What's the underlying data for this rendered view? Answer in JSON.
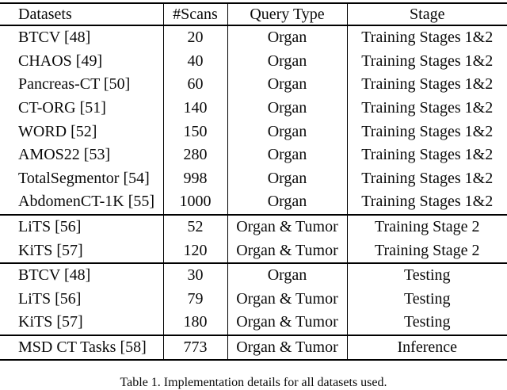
{
  "page": {
    "background": "#ffffff",
    "text_color": "#0a0a0a",
    "rule_color": "#000000"
  },
  "table": {
    "columns": [
      {
        "key": "datasets",
        "label": "Datasets",
        "align": "left"
      },
      {
        "key": "scans",
        "label": "#Scans",
        "align": "center"
      },
      {
        "key": "query-type",
        "label": "Query Type",
        "align": "center"
      },
      {
        "key": "stage",
        "label": "Stage",
        "align": "center"
      }
    ],
    "sections": [
      {
        "name": "training-stages-1-and-2",
        "rows": [
          [
            "BTCV [48]",
            "20",
            "Organ",
            "Training Stages 1&2"
          ],
          [
            "CHAOS [49]",
            "40",
            "Organ",
            "Training Stages 1&2"
          ],
          [
            "Pancreas-CT [50]",
            "60",
            "Organ",
            "Training Stages 1&2"
          ],
          [
            "CT-ORG [51]",
            "140",
            "Organ",
            "Training Stages 1&2"
          ],
          [
            "WORD [52]",
            "150",
            "Organ",
            "Training Stages 1&2"
          ],
          [
            "AMOS22 [53]",
            "280",
            "Organ",
            "Training Stages 1&2"
          ],
          [
            "TotalSegmentor [54]",
            "998",
            "Organ",
            "Training Stages 1&2"
          ],
          [
            "AbdomenCT-1K [55]",
            "1000",
            "Organ",
            "Training Stages 1&2"
          ]
        ]
      },
      {
        "name": "training-stage-2",
        "rows": [
          [
            "LiTS [56]",
            "52",
            "Organ & Tumor",
            "Training Stage 2"
          ],
          [
            "KiTS [57]",
            "120",
            "Organ & Tumor",
            "Training Stage 2"
          ]
        ]
      },
      {
        "name": "testing",
        "rows": [
          [
            "BTCV [48]",
            "30",
            "Organ",
            "Testing"
          ],
          [
            "LiTS [56]",
            "79",
            "Organ & Tumor",
            "Testing"
          ],
          [
            "KiTS [57]",
            "180",
            "Organ & Tumor",
            "Testing"
          ]
        ]
      },
      {
        "name": "inference",
        "rows": [
          [
            "MSD CT Tasks [58]",
            "773",
            "Organ & Tumor",
            "Inference"
          ]
        ]
      }
    ]
  },
  "caption": {
    "text": "Table 1. Implementation details for all datasets used."
  }
}
